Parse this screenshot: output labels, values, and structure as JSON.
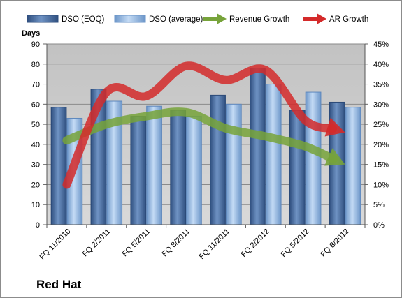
{
  "chart_data": {
    "type": "bar",
    "title": "Red Hat",
    "ylabel_left": "Days",
    "categories": [
      "FQ 11/2010",
      "FQ 2/2011",
      "FQ 5/2011",
      "FQ 8/2011",
      "FQ 11/2011",
      "FQ 2/2012",
      "FQ 5/2012",
      "FQ 8/2012"
    ],
    "left_axis": {
      "min": 0,
      "max": 90,
      "ticks": [
        "0",
        "10",
        "20",
        "30",
        "40",
        "50",
        "60",
        "70",
        "80",
        "90"
      ]
    },
    "right_axis": {
      "min": 0,
      "max": 45,
      "ticks": [
        "0%",
        "5%",
        "10%",
        "15%",
        "20%",
        "25%",
        "30%",
        "35%",
        "40%",
        "45%"
      ]
    },
    "series": [
      {
        "name": "DSO (EOQ)",
        "kind": "bar",
        "axis": "left",
        "color": "#4a6fa5",
        "values": [
          58.5,
          67.5,
          54,
          57,
          64.5,
          78,
          57,
          61
        ]
      },
      {
        "name": "DSO (average)",
        "kind": "bar",
        "axis": "left",
        "color": "#8fb4e3",
        "values": [
          53,
          61.5,
          59,
          54,
          60,
          70,
          66,
          58.5
        ]
      },
      {
        "name": "Revenue Growth",
        "kind": "trend-arrow",
        "axis": "right",
        "color": "#77a33a",
        "values": [
          21,
          25,
          27,
          28,
          24,
          22,
          19.5,
          15
        ]
      },
      {
        "name": "AR Growth",
        "kind": "trend-arrow",
        "axis": "right",
        "color": "#d42a2a",
        "values": [
          10,
          33,
          32,
          39.5,
          36,
          38.5,
          26,
          23
        ]
      }
    ],
    "grid": true,
    "legend_position": "top"
  }
}
